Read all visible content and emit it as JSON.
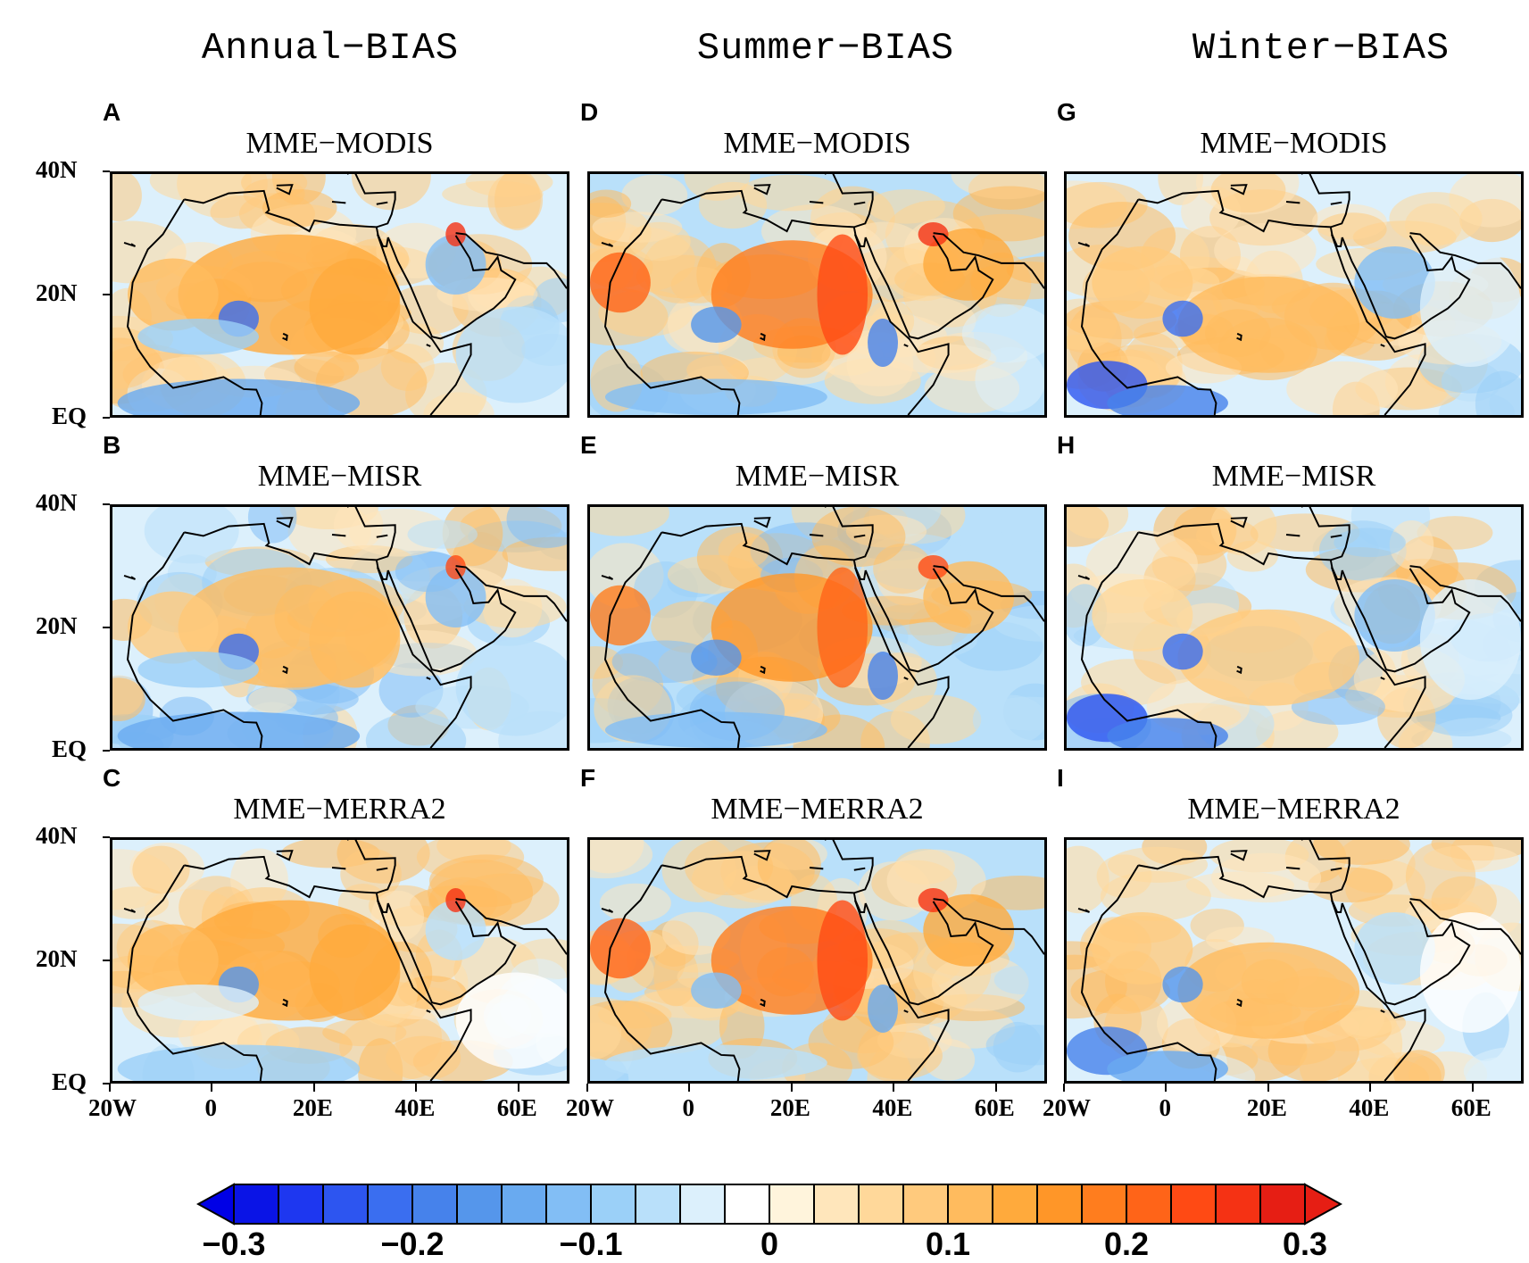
{
  "columns": [
    {
      "title": "Annual−BIAS"
    },
    {
      "title": "Summer−BIAS"
    },
    {
      "title": "Winter−BIAS"
    }
  ],
  "panels": [
    {
      "letter": "A",
      "title": "MME−MODIS"
    },
    {
      "letter": "B",
      "title": "MME−MISR"
    },
    {
      "letter": "C",
      "title": "MME−MERRA2"
    },
    {
      "letter": "D",
      "title": "MME−MODIS"
    },
    {
      "letter": "E",
      "title": "MME−MISR"
    },
    {
      "letter": "F",
      "title": "MME−MERRA2"
    },
    {
      "letter": "G",
      "title": "MME−MODIS"
    },
    {
      "letter": "H",
      "title": "MME−MISR"
    },
    {
      "letter": "I",
      "title": "MME−MERRA2"
    }
  ],
  "axes": {
    "lat_labels": [
      "40N",
      "20N",
      "EQ"
    ],
    "lon_labels": [
      "20W",
      "0",
      "20E",
      "40E",
      "60E"
    ],
    "lat_range": [
      0,
      40
    ],
    "lon_range": [
      -20,
      70
    ]
  },
  "colorbar": {
    "labels": [
      "−0.3",
      "−0.2",
      "−0.1",
      "0",
      "0.1",
      "0.2",
      "0.3"
    ],
    "range": [
      -0.3,
      0.3
    ],
    "colors": [
      "#0a14e6",
      "#1e37f0",
      "#2d55f0",
      "#3a6ef0",
      "#4682eb",
      "#5596eb",
      "#69aaf0",
      "#82bef5",
      "#9bd0f8",
      "#b9e0fa",
      "#dcf0fc",
      "#ffffff",
      "#fff4dc",
      "#ffe6bb",
      "#ffd89a",
      "#ffca7d",
      "#ffbb5e",
      "#ffaa3c",
      "#ff9628",
      "#ff7d1e",
      "#ff6418",
      "#ff4a14",
      "#f53214",
      "#e61e14"
    ]
  }
}
